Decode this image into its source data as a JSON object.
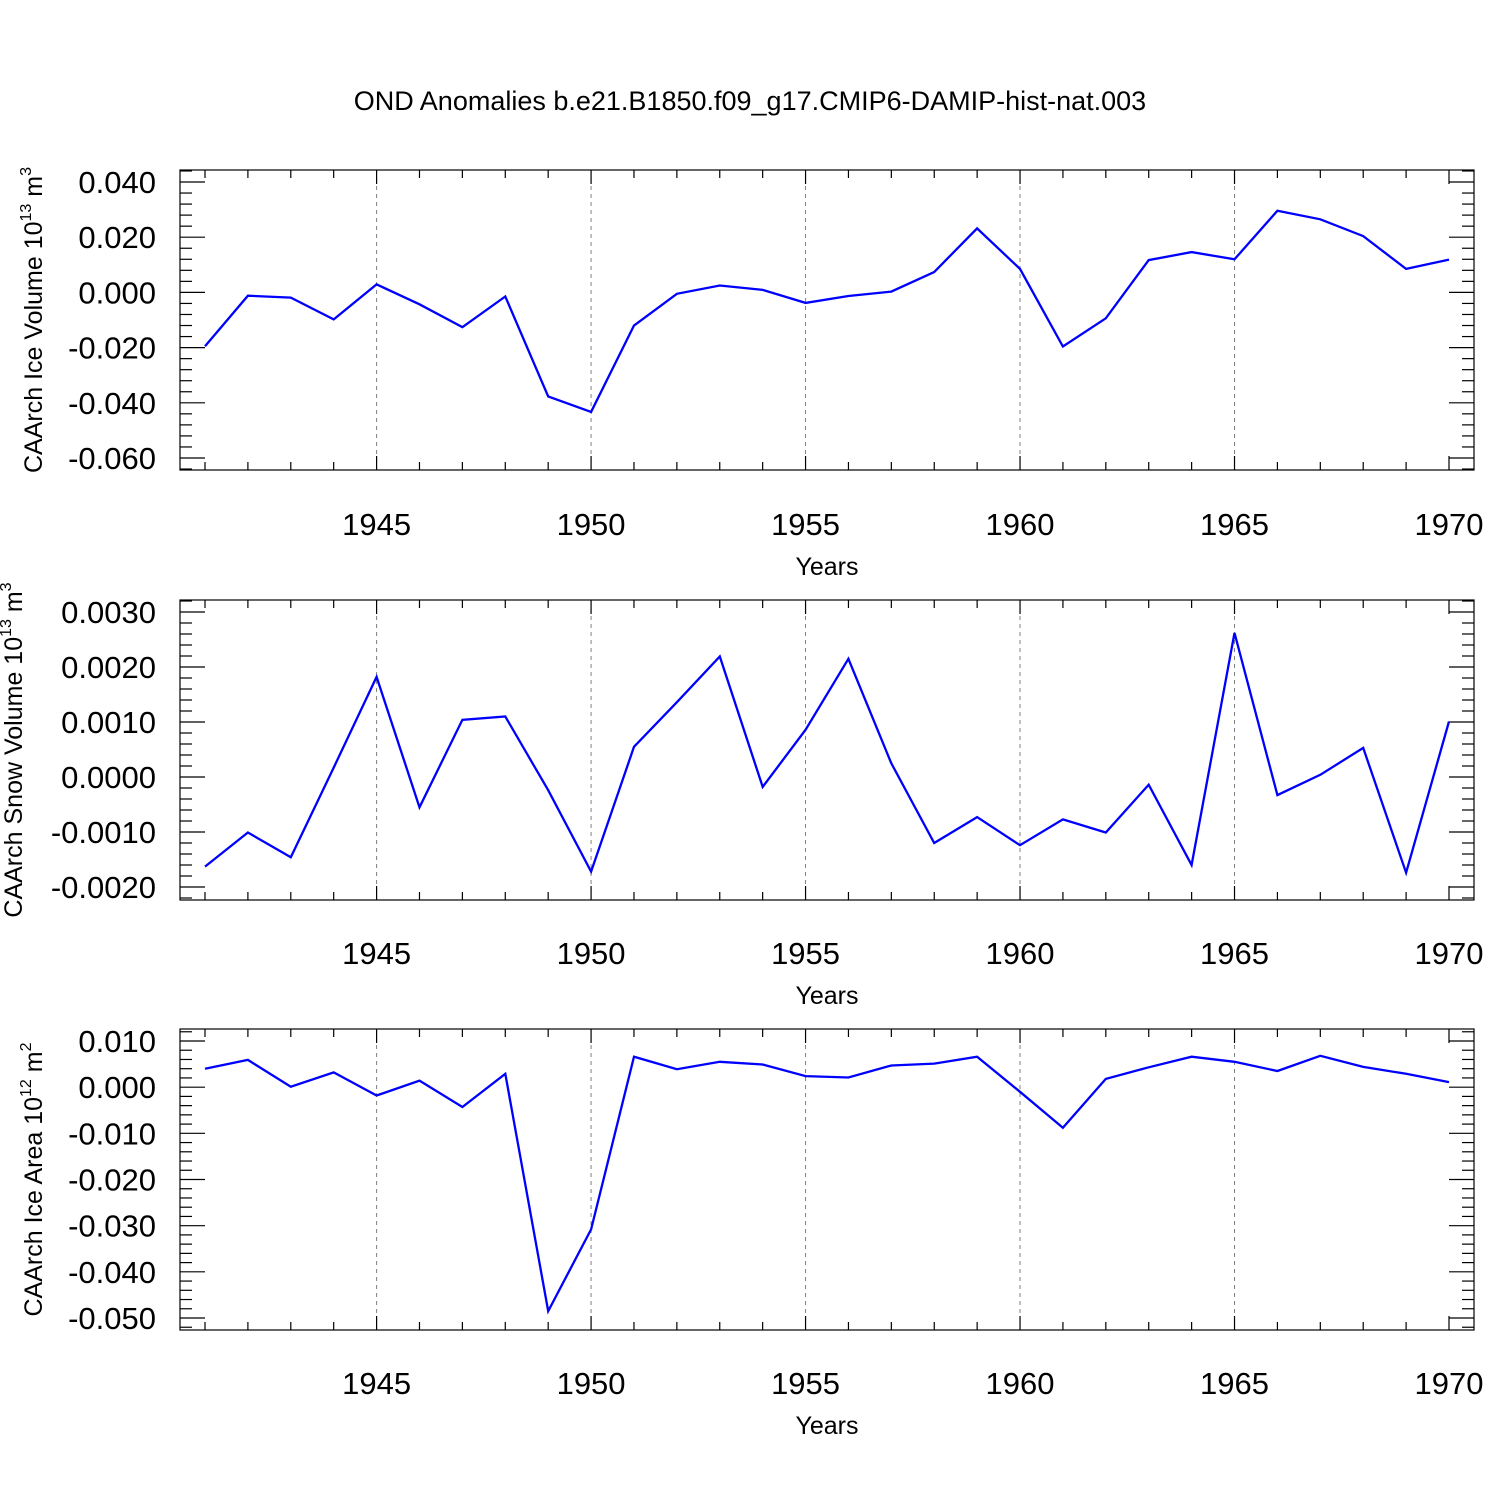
{
  "title": "OND Anomalies b.e21.B1850.f09_g17.CMIP6-DAMIP-hist-nat.003",
  "chart_data": [
    {
      "type": "line",
      "ylabel": "CAArch Ice Volume 10",
      "ylabel_exp": "13",
      "ylabel_unit": " m",
      "ylabel_unit_exp": "3",
      "xlabel": "Years",
      "xlim": [
        1941,
        1970
      ],
      "ylim": [
        -0.06,
        0.04
      ],
      "yticks": [
        -0.06,
        -0.04,
        -0.02,
        0.0,
        0.02,
        0.04
      ],
      "ytick_labels": [
        "-0.060",
        "-0.040",
        "-0.020",
        "0.000",
        "0.020",
        "0.040"
      ],
      "xticks": [
        1945,
        1950,
        1955,
        1960,
        1965,
        1970
      ],
      "xtick_labels": [
        "1945",
        "1950",
        "1955",
        "1960",
        "1965",
        "1970"
      ],
      "grid": "vertical dashed at major x ticks",
      "color": "#0000ff",
      "x": [
        1941,
        1942,
        1943,
        1944,
        1945,
        1946,
        1947,
        1948,
        1949,
        1950,
        1951,
        1952,
        1953,
        1954,
        1955,
        1956,
        1957,
        1958,
        1959,
        1960,
        1961,
        1962,
        1963,
        1964,
        1965,
        1966,
        1967,
        1968,
        1969,
        1970
      ],
      "y": [
        -0.0195,
        -0.0012,
        -0.0019,
        -0.0098,
        0.0029,
        -0.0043,
        -0.0126,
        -0.0015,
        -0.0377,
        -0.0433,
        -0.012,
        -0.0005,
        0.0025,
        0.0009,
        -0.0038,
        -0.0013,
        0.0003,
        0.0074,
        0.0232,
        0.0085,
        -0.0196,
        -0.0094,
        0.0117,
        0.0146,
        0.012,
        0.0296,
        0.0265,
        0.0204,
        0.0085,
        0.0119
      ]
    },
    {
      "type": "line",
      "ylabel": "CAArch Snow Volume 10",
      "ylabel_exp": "13",
      "ylabel_unit": " m",
      "ylabel_unit_exp": "3",
      "xlabel": "Years",
      "xlim": [
        1941,
        1970
      ],
      "ylim": [
        -0.002,
        0.003
      ],
      "yticks": [
        -0.002,
        -0.001,
        0.0,
        0.001,
        0.002,
        0.003
      ],
      "ytick_labels": [
        "-0.0020",
        "-0.0010",
        "0.0000",
        "0.0010",
        "0.0020",
        "0.0030"
      ],
      "xticks": [
        1945,
        1950,
        1955,
        1960,
        1965,
        1970
      ],
      "xtick_labels": [
        "1945",
        "1950",
        "1955",
        "1960",
        "1965",
        "1970"
      ],
      "grid": "vertical dashed at major x ticks",
      "color": "#0000ff",
      "x": [
        1941,
        1942,
        1943,
        1944,
        1945,
        1946,
        1947,
        1948,
        1949,
        1950,
        1951,
        1952,
        1953,
        1954,
        1955,
        1956,
        1957,
        1958,
        1959,
        1960,
        1961,
        1962,
        1963,
        1964,
        1965,
        1966,
        1967,
        1968,
        1969,
        1970
      ],
      "y": [
        -0.00163,
        -0.00101,
        -0.00146,
        0.00017,
        0.00182,
        -0.00055,
        0.00104,
        0.0011,
        -0.00024,
        -0.00172,
        0.00055,
        0.00136,
        0.00219,
        -0.00018,
        0.00086,
        0.00215,
        0.00025,
        -0.0012,
        -0.00073,
        -0.00124,
        -0.00077,
        -0.00101,
        -0.00014,
        -0.0016,
        0.00262,
        -0.00033,
        4e-05,
        0.00053,
        -0.00174,
        0.00101
      ]
    },
    {
      "type": "line",
      "ylabel": "CAArch Ice Area 10",
      "ylabel_exp": "12",
      "ylabel_unit": " m",
      "ylabel_unit_exp": "2",
      "xlabel": "Years",
      "xlim": [
        1941,
        1970
      ],
      "ylim": [
        -0.05,
        0.01
      ],
      "yticks": [
        -0.05,
        -0.04,
        -0.03,
        -0.02,
        -0.01,
        0.0,
        0.01
      ],
      "ytick_labels": [
        "-0.050",
        "-0.040",
        "-0.030",
        "-0.020",
        "-0.010",
        "0.000",
        "0.010"
      ],
      "xticks": [
        1945,
        1950,
        1955,
        1960,
        1965,
        1970
      ],
      "xtick_labels": [
        "1945",
        "1950",
        "1955",
        "1960",
        "1965",
        "1970"
      ],
      "grid": "vertical dashed at major x ticks",
      "color": "#0000ff",
      "x": [
        1941,
        1942,
        1943,
        1944,
        1945,
        1946,
        1947,
        1948,
        1949,
        1950,
        1951,
        1952,
        1953,
        1954,
        1955,
        1956,
        1957,
        1958,
        1959,
        1960,
        1961,
        1962,
        1963,
        1964,
        1965,
        1966,
        1967,
        1968,
        1969,
        1970
      ],
      "y": [
        0.004,
        0.0059,
        0.0001,
        0.0032,
        -0.0018,
        0.0014,
        -0.0043,
        0.0029,
        -0.0485,
        -0.0308,
        0.0066,
        0.0039,
        0.0055,
        0.0049,
        0.0024,
        0.0021,
        0.0047,
        0.0051,
        0.0066,
        -0.001,
        -0.0088,
        0.0018,
        0.0043,
        0.0066,
        0.0055,
        0.0035,
        0.0068,
        0.0044,
        0.0029,
        0.0011
      ]
    }
  ]
}
